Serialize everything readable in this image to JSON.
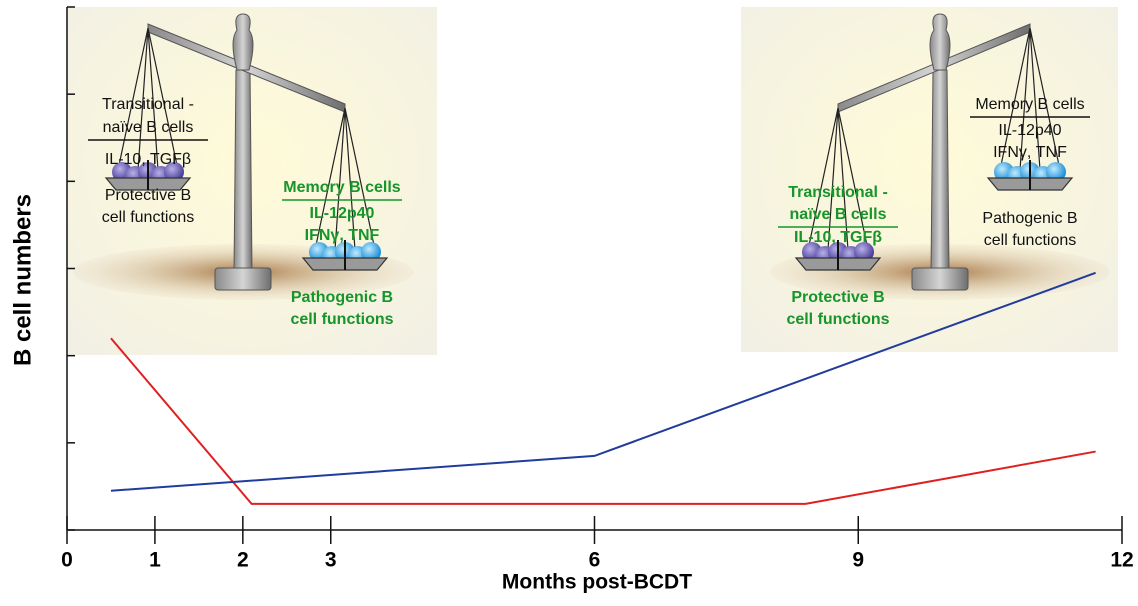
{
  "chart_data": {
    "type": "line",
    "x_label": "Months post-BCDT",
    "y_label": "B cell numbers",
    "xlim": [
      0,
      12
    ],
    "xticks": [
      0,
      1,
      2,
      3,
      6,
      9,
      12
    ],
    "ylim": [
      0,
      6
    ],
    "yticks": [
      0,
      1,
      2,
      3,
      4,
      5,
      6
    ],
    "series": [
      {
        "color": "#e02020",
        "x": [
          0.5,
          2.1,
          8.4,
          11.7
        ],
        "values": [
          2.2,
          0.3,
          0.3,
          0.9
        ]
      },
      {
        "color": "#203c9c",
        "x": [
          0.5,
          6.0,
          11.7
        ],
        "values": [
          0.45,
          0.85,
          2.95
        ]
      }
    ],
    "panels": [
      {
        "black": [
          "Transitional -",
          "naïve B cells",
          "IL-10, TGFβ",
          "Protective B",
          "cell functions"
        ],
        "green": [
          "Memory B cells",
          "IL-12p40",
          "IFNγ, TNF",
          "Pathogenic B",
          "cell functions"
        ]
      },
      {
        "green": [
          "Transitional -",
          "naïve B cells",
          "IL-10, TGFβ",
          "Protective B",
          "cell functions"
        ],
        "black": [
          "Memory B cells",
          "IL-12p40",
          "IFNγ, TNF",
          "Pathogenic B",
          "cell functions"
        ]
      }
    ]
  }
}
